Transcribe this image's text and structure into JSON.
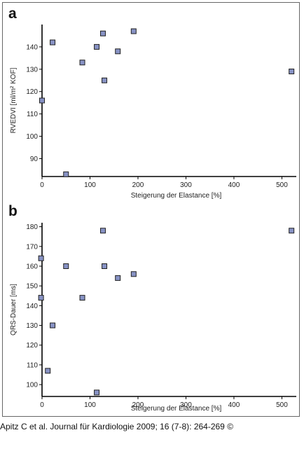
{
  "chart_data": [
    {
      "panel": "a",
      "type": "scatter",
      "title": "",
      "xlabel": "Steigerung der Elastance [%]",
      "ylabel": "RVEDVI [ml/m² KOF]",
      "xlim": [
        0,
        530
      ],
      "ylim": [
        82,
        150
      ],
      "xticks": [
        0,
        100,
        200,
        300,
        400,
        500
      ],
      "yticks": [
        90,
        100,
        110,
        120,
        130,
        140
      ],
      "grid": false,
      "marker_color": "#8792c4",
      "points": [
        {
          "x": 0,
          "y": 116
        },
        {
          "x": 22,
          "y": 142
        },
        {
          "x": 50,
          "y": 83
        },
        {
          "x": 84,
          "y": 133
        },
        {
          "x": 114,
          "y": 140
        },
        {
          "x": 127,
          "y": 146
        },
        {
          "x": 130,
          "y": 125
        },
        {
          "x": 158,
          "y": 138
        },
        {
          "x": 191,
          "y": 147
        },
        {
          "x": 520,
          "y": 129
        }
      ]
    },
    {
      "panel": "b",
      "type": "scatter",
      "title": "",
      "xlabel": "Steigerung der Elastance [%]",
      "ylabel": "QRS-Dauer [ms]",
      "xlim": [
        0,
        530
      ],
      "ylim": [
        94,
        182
      ],
      "xticks": [
        0,
        100,
        200,
        300,
        400,
        500
      ],
      "yticks": [
        100,
        110,
        120,
        130,
        140,
        150,
        160,
        170,
        180
      ],
      "grid": false,
      "marker_color": "#8792c4",
      "points": [
        {
          "x": -2,
          "y": 164
        },
        {
          "x": -2,
          "y": 144
        },
        {
          "x": 12,
          "y": 107
        },
        {
          "x": 22,
          "y": 130
        },
        {
          "x": 50,
          "y": 160
        },
        {
          "x": 84,
          "y": 144
        },
        {
          "x": 114,
          "y": 96
        },
        {
          "x": 127,
          "y": 178
        },
        {
          "x": 130,
          "y": 160
        },
        {
          "x": 158,
          "y": 154
        },
        {
          "x": 191,
          "y": 156
        },
        {
          "x": 520,
          "y": 178
        }
      ]
    }
  ],
  "citation": "Apitz C et al. Journal für Kardiologie 2009; 16 (7-8): 264-269 ©"
}
